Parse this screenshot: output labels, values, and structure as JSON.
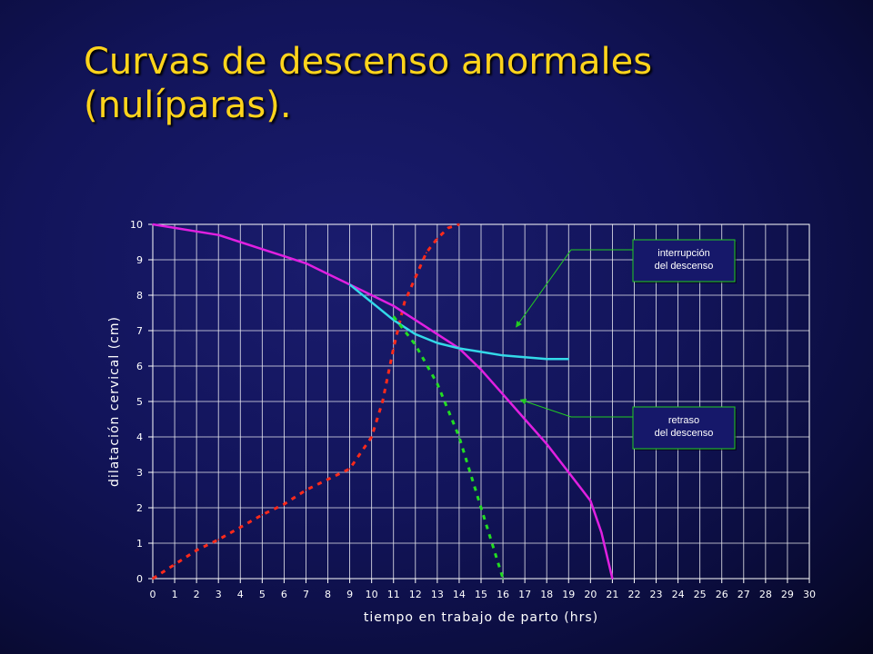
{
  "title": {
    "line1": "Curvas de descenso anormales",
    "line2": "(nulíparas)."
  },
  "chart_data": {
    "type": "line",
    "xlabel": "tiempo en trabajo de parto (hrs)",
    "ylabel": "dilatación cervical (cm)",
    "xlim": [
      0,
      30
    ],
    "ylim": [
      0,
      10
    ],
    "x_ticks": [
      0,
      1,
      2,
      3,
      4,
      5,
      6,
      7,
      8,
      9,
      10,
      11,
      12,
      13,
      14,
      15,
      16,
      17,
      18,
      19,
      20,
      21,
      22,
      23,
      24,
      25,
      26,
      27,
      28,
      29,
      30
    ],
    "y_ticks": [
      0,
      1,
      2,
      3,
      4,
      5,
      6,
      7,
      8,
      9,
      10
    ],
    "grid": true,
    "series": [
      {
        "key": "dilatation",
        "color": "#ff2a1a",
        "style": "dashed",
        "x": [
          0,
          1,
          2,
          3,
          4,
          5,
          6,
          7,
          8,
          9,
          10,
          10.5,
          11,
          11.5,
          12,
          12.5,
          13,
          13.5,
          14
        ],
        "y": [
          0,
          0.4,
          0.8,
          1.1,
          1.45,
          1.8,
          2.1,
          2.5,
          2.8,
          3.1,
          4,
          5,
          6.5,
          7.8,
          8.5,
          9.2,
          9.6,
          9.9,
          10
        ]
      },
      {
        "key": "normal",
        "color": "#e020e0",
        "style": "solid",
        "x": [
          0,
          1,
          2,
          3,
          4,
          5,
          6,
          7,
          8,
          9,
          10,
          11,
          12,
          13,
          14,
          15,
          16,
          17,
          18,
          19,
          20,
          20.5,
          21
        ],
        "y": [
          10,
          9.9,
          9.8,
          9.7,
          9.5,
          9.3,
          9.1,
          8.9,
          8.6,
          8.3,
          8,
          7.7,
          7.3,
          6.9,
          6.5,
          5.9,
          5.2,
          4.5,
          3.8,
          3,
          2.2,
          1.3,
          0
        ]
      },
      {
        "key": "arrest",
        "name": "interrupción del descenso",
        "color": "#33d9e8",
        "style": "solid",
        "x": [
          9,
          10,
          11,
          12,
          13,
          14,
          15,
          16,
          17,
          18,
          19
        ],
        "y": [
          8.3,
          7.8,
          7.3,
          6.9,
          6.65,
          6.5,
          6.4,
          6.3,
          6.25,
          6.2,
          6.2
        ]
      },
      {
        "key": "protraction",
        "name": "retraso del descenso",
        "color": "#22dd22",
        "style": "dashed",
        "x": [
          11,
          12,
          13,
          14,
          15,
          16
        ],
        "y": [
          7.4,
          6.6,
          5.5,
          4,
          2,
          0
        ]
      }
    ],
    "annotations": [
      {
        "key": "arrest",
        "text_lines": [
          "interrupción",
          "del descenso"
        ],
        "target_x": 16.6,
        "target_y": 7.1
      },
      {
        "key": "protraction",
        "text_lines": [
          "retraso",
          "del descenso"
        ],
        "target_x": 16.8,
        "target_y": 5.05
      }
    ]
  }
}
